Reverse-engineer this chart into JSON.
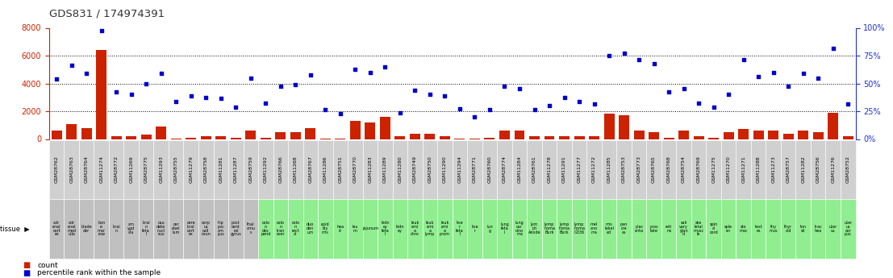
{
  "title": "GDS831 / 174974391",
  "samples": [
    "GSM28762",
    "GSM28763",
    "GSM28764",
    "GSM11274",
    "GSM28772",
    "GSM11269",
    "GSM28775",
    "GSM11293",
    "GSM28755",
    "GSM11279",
    "GSM28758",
    "GSM11281",
    "GSM11287",
    "GSM28759",
    "GSM11292",
    "GSM28766",
    "GSM11268",
    "GSM28767",
    "GSM11286",
    "GSM28751",
    "GSM28770",
    "GSM11283",
    "GSM11289",
    "GSM11280",
    "GSM28749",
    "GSM28750",
    "GSM11290",
    "GSM11294",
    "GSM28771",
    "GSM28760",
    "GSM28774",
    "GSM11284",
    "GSM28761",
    "GSM11278",
    "GSM11291",
    "GSM11277",
    "GSM11272",
    "GSM11285",
    "GSM28753",
    "GSM28773",
    "GSM28765",
    "GSM28768",
    "GSM28754",
    "GSM28769",
    "GSM11275",
    "GSM11270",
    "GSM11271",
    "GSM11288",
    "GSM11273",
    "GSM28757",
    "GSM11282",
    "GSM28756",
    "GSM11276",
    "GSM28752"
  ],
  "tissues_multiline": [
    "adr\nenal\ncort\nex",
    "adr\nenal\nmed\nulla",
    "blade\nder",
    "bon\ne\nmar\nrow",
    "brai\nn",
    "am\nygd\nala",
    "brai\nn\nfeta\nl",
    "cau\ndate\nnucl\neus",
    "cer\nebel\nlum",
    "cere\nbral\ncort\nex",
    "corp\nus\ncall\nosun",
    "hip\npoc\nam\npus",
    "post\ncent\nral\ngyrus",
    "thal\namu\ns",
    "colo\nn\ndes\npend",
    "colo\nn\ntran\nsver",
    "colo\nn\nrect\nal",
    "duo\nden\num",
    "epid\nidy\nmis",
    "hea\nrt",
    "leu\nm",
    "jejunum",
    "kidn\ney\nfeta\nl",
    "kidn\ney",
    "leuk\nemi\na\nchro",
    "leuk\nemi\na\nlymp",
    "leuk\nemi\na\nprom",
    "live\nr\nfeta\nl",
    "live\nr",
    "lun\ng",
    "lung\nfeta\nl",
    "lung\ncar\ncino\nma",
    "lym\nph\nAnode",
    "lymp\nhoma\nBurk",
    "lymp\nhoma\nBurk",
    "lymp\nhoma\nG336",
    "mel\nano\nma",
    "mis\nlabel\ned",
    "pan\ncre\nas",
    "plac\nenta",
    "pros\ntate",
    "reti\nna",
    "sali\nvary\nglan\nd",
    "ske\nletal\nmusc\nle",
    "spin\nal\ncord",
    "sple\nen",
    "sto\nmac",
    "test\nes",
    "thy\nmus",
    "thyr\noid",
    "ton\nsil",
    "trac\nhea",
    "uter\nus",
    "uter\nus\ncor\npus"
  ],
  "tissue_colors": [
    "#c0c0c0",
    "#c0c0c0",
    "#c0c0c0",
    "#c0c0c0",
    "#c0c0c0",
    "#c0c0c0",
    "#c0c0c0",
    "#c0c0c0",
    "#c0c0c0",
    "#c0c0c0",
    "#c0c0c0",
    "#c0c0c0",
    "#c0c0c0",
    "#c0c0c0",
    "#90ee90",
    "#90ee90",
    "#90ee90",
    "#90ee90",
    "#90ee90",
    "#90ee90",
    "#90ee90",
    "#90ee90",
    "#90ee90",
    "#90ee90",
    "#90ee90",
    "#90ee90",
    "#90ee90",
    "#90ee90",
    "#90ee90",
    "#90ee90",
    "#90ee90",
    "#90ee90",
    "#90ee90",
    "#90ee90",
    "#90ee90",
    "#90ee90",
    "#90ee90",
    "#90ee90",
    "#90ee90",
    "#90ee90",
    "#90ee90",
    "#90ee90",
    "#90ee90",
    "#90ee90",
    "#90ee90",
    "#90ee90",
    "#90ee90",
    "#90ee90",
    "#90ee90",
    "#90ee90",
    "#90ee90",
    "#90ee90",
    "#90ee90",
    "#90ee90"
  ],
  "counts": [
    600,
    1100,
    800,
    6400,
    200,
    200,
    300,
    900,
    50,
    100,
    200,
    200,
    100,
    600,
    100,
    500,
    500,
    800,
    50,
    50,
    1300,
    1200,
    1600,
    200,
    400,
    400,
    200,
    50,
    50,
    100,
    600,
    600,
    200,
    200,
    200,
    200,
    200,
    1800,
    1700,
    600,
    500,
    100,
    600,
    200,
    100,
    500,
    700,
    600,
    600,
    400,
    600,
    500,
    1900,
    200
  ],
  "percentiles": [
    4300,
    5300,
    4700,
    7800,
    3400,
    3200,
    4000,
    4700,
    2700,
    3100,
    3000,
    2900,
    2300,
    4400,
    2600,
    3800,
    3900,
    4600,
    2100,
    1800,
    5000,
    4800,
    5200,
    1900,
    3500,
    3200,
    3100,
    2200,
    1600,
    2100,
    3800,
    3600,
    2100,
    2400,
    3000,
    2700,
    2500,
    6000,
    6200,
    5700,
    5400,
    3400,
    3600,
    2600,
    2300,
    3200,
    5700,
    4500,
    4800,
    3800,
    4700,
    4400,
    6500,
    2500
  ],
  "ylim": [
    0,
    8000
  ],
  "yticks_left": [
    0,
    2000,
    4000,
    6000,
    8000
  ],
  "yticks_right_vals": [
    0,
    2000,
    4000,
    6000,
    8000
  ],
  "yticks_right_labels": [
    "0%",
    "25%",
    "50%",
    "75%",
    "100%"
  ],
  "bar_color": "#cc2200",
  "scatter_color": "#0000cc",
  "left_axis_color": "#cc2200",
  "right_axis_color": "#2233cc",
  "sample_box_color": "#d0d0d0",
  "legend_items": [
    "count",
    "percentile rank within the sample"
  ],
  "legend_colors": [
    "#cc2200",
    "#0000cc"
  ]
}
